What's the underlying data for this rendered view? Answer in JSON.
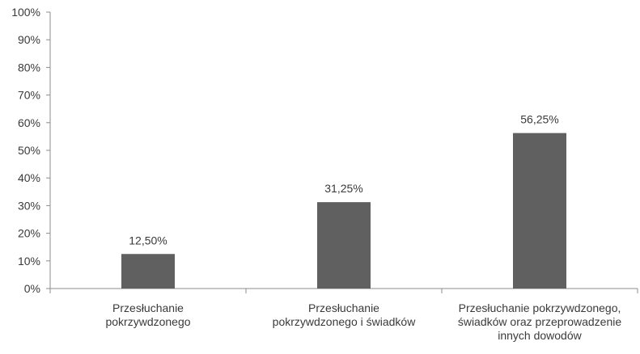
{
  "chart_data": {
    "type": "bar",
    "categories": [
      [
        "Przesłuchanie",
        "pokrzywdzonego"
      ],
      [
        "Przesłuchanie",
        "pokrzywdzonego i świadków"
      ],
      [
        "Przesłuchanie pokrzywdzonego,",
        "świadków oraz przeprowadzenie",
        "innych dowodów"
      ]
    ],
    "values": [
      12.5,
      31.25,
      56.25
    ],
    "data_labels": [
      "12,50%",
      "31,25%",
      "56,25%"
    ],
    "y_ticks": [
      "0%",
      "10%",
      "20%",
      "30%",
      "40%",
      "50%",
      "60%",
      "70%",
      "80%",
      "90%",
      "100%"
    ],
    "ylim": [
      0,
      100
    ],
    "grid": false,
    "bar_color": "#606060"
  }
}
